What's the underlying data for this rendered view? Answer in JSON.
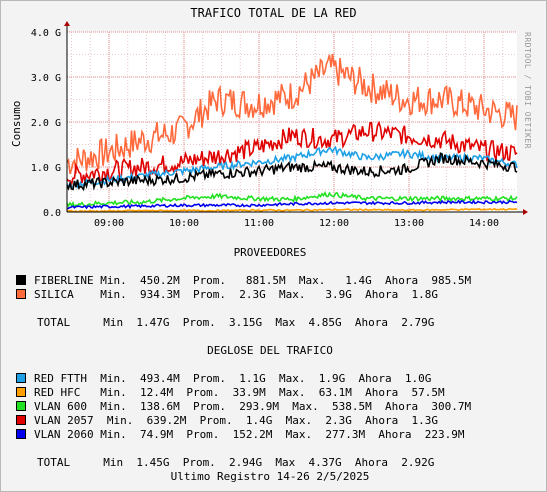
{
  "chart_data": {
    "type": "line",
    "title": "TRAFICO TOTAL DE LA RED",
    "ylabel": "Consumo",
    "xlabel": "",
    "watermark": "RRDTOOL / TOBI OETIKER",
    "ylim": [
      0,
      4.0
    ],
    "y_ticks": [
      "0.0",
      "1.0 G",
      "2.0 G",
      "3.0 G",
      "4.0 G"
    ],
    "x_ticks": [
      "09:00",
      "10:00",
      "11:00",
      "12:00",
      "13:00",
      "14:00"
    ],
    "grid": true,
    "series": [
      {
        "name": "SILICA",
        "color": "#ff6a3d",
        "values": [
          1.1,
          1.3,
          1.6,
          1.8,
          2.5,
          2.4,
          2.6,
          3.2,
          2.8,
          2.5,
          2.5,
          2.3,
          2.1
        ]
      },
      {
        "name": "VLAN 2057",
        "color": "#e00000",
        "values": [
          0.8,
          0.9,
          1.0,
          1.1,
          1.25,
          1.4,
          1.7,
          1.6,
          1.8,
          1.7,
          1.6,
          1.4,
          1.3
        ]
      },
      {
        "name": "RED FTTH",
        "color": "#1ea0e6",
        "values": [
          0.6,
          0.7,
          0.8,
          0.9,
          1.0,
          1.1,
          1.2,
          1.4,
          1.2,
          1.3,
          1.2,
          1.2,
          1.05
        ]
      },
      {
        "name": "FIBERLINE",
        "color": "#000000",
        "values": [
          0.6,
          0.65,
          0.7,
          0.75,
          0.85,
          0.9,
          1.0,
          1.0,
          0.9,
          0.95,
          1.2,
          1.1,
          1.0
        ]
      },
      {
        "name": "VLAN 600",
        "color": "#22e022",
        "values": [
          0.15,
          0.2,
          0.22,
          0.3,
          0.35,
          0.3,
          0.28,
          0.4,
          0.3,
          0.3,
          0.3,
          0.3,
          0.3
        ]
      },
      {
        "name": "VLAN 2060",
        "color": "#0000ee",
        "values": [
          0.1,
          0.12,
          0.13,
          0.15,
          0.15,
          0.15,
          0.18,
          0.2,
          0.2,
          0.2,
          0.22,
          0.22,
          0.22
        ]
      },
      {
        "name": "RED HFC",
        "color": "#ffa000",
        "values": [
          0.02,
          0.02,
          0.03,
          0.03,
          0.03,
          0.04,
          0.04,
          0.05,
          0.05,
          0.04,
          0.05,
          0.06,
          0.06
        ]
      }
    ]
  },
  "sections": {
    "providers_title": "PROVEEDORES",
    "breakdown_title": "DEGLOSE DEL TRAFICO",
    "providers": [
      {
        "name": "FIBERLINE",
        "color": "#000000",
        "text": "FIBERLINE Min.  450.2M  Prom.   881.5M  Max.   1.4G  Ahora  985.5M"
      },
      {
        "name": "SILICA",
        "color": "#ff6a3d",
        "text": "SILICA    Min.  934.3M  Prom.  2.3G  Max.   3.9G  Ahora  1.8G"
      }
    ],
    "providers_total": "TOTAL     Min  1.47G  Prom.  3.15G  Max  4.85G  Ahora  2.79G",
    "breakdown": [
      {
        "name": "RED FTTH",
        "color": "#1ea0e6",
        "text": "RED FTTH  Min.  493.4M  Prom.  1.1G  Max.  1.9G  Ahora  1.0G"
      },
      {
        "name": "RED HFC",
        "color": "#ffa000",
        "text": "RED HFC   Min.  12.4M  Prom.  33.9M  Max.  63.1M  Ahora  57.5M"
      },
      {
        "name": "VLAN 600",
        "color": "#22e022",
        "text": "VLAN 600  Min.  138.6M  Prom.  293.9M  Max.  538.5M  Ahora  300.7M"
      },
      {
        "name": "VLAN 2057",
        "color": "#e00000",
        "text": "VLAN 2057  Min.  639.2M  Prom.  1.4G  Max.  2.3G  Ahora  1.3G"
      },
      {
        "name": "VLAN 2060",
        "color": "#0000ee",
        "text": "VLAN 2060 Min.  74.9M  Prom.  152.2M  Max.  277.3M  Ahora  223.9M"
      }
    ],
    "breakdown_total": "TOTAL     Min  1.45G  Prom.  2.94G  Max  4.37G  Ahora  2.92G",
    "footer": "Ultimo Registro 14-26 2/5/2025"
  }
}
